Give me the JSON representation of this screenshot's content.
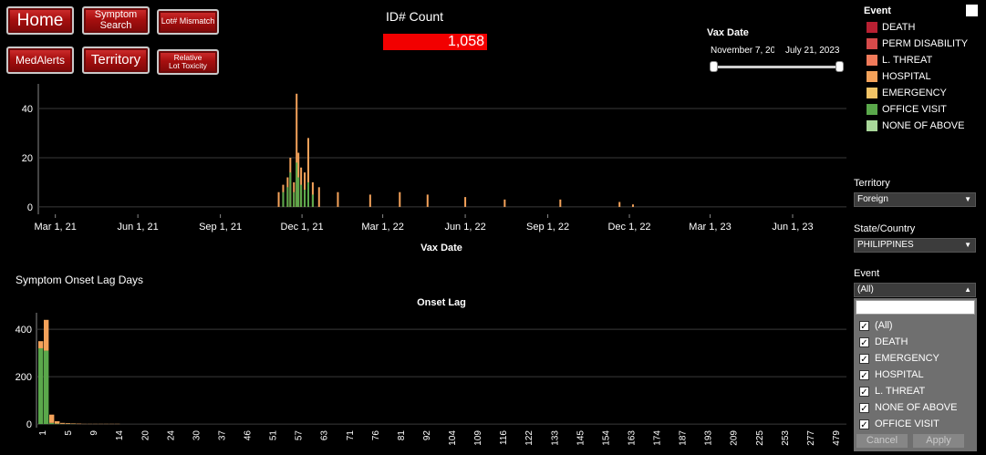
{
  "nav": {
    "home": "Home",
    "symptom_search": "Symptom\nSearch",
    "lot_mismatch": "Lot# Mismatch",
    "medalerts": "MedAlerts",
    "territory": "Territory",
    "relative_lot_toxicity": "Relative\nLot Toxicity"
  },
  "count": {
    "title": "ID# Count",
    "value": "1,058"
  },
  "vax_date_filter": {
    "title": "Vax Date",
    "start": "November 7, 20",
    "end": "July 21, 2023"
  },
  "legend": {
    "title": "Event",
    "items": [
      {
        "label": "DEATH",
        "color": "#b82032"
      },
      {
        "label": "PERM DISABILITY",
        "color": "#d64a4a"
      },
      {
        "label": "L. THREAT",
        "color": "#f07a5a"
      },
      {
        "label": "HOSPITAL",
        "color": "#f4a25a"
      },
      {
        "label": "EMERGENCY",
        "color": "#f2c467"
      },
      {
        "label": "OFFICE VISIT",
        "color": "#5aa84b"
      },
      {
        "label": "NONE OF ABOVE",
        "color": "#a9d79a"
      }
    ]
  },
  "filters": {
    "territory": {
      "label": "Territory",
      "value": "Foreign"
    },
    "state_country": {
      "label": "State/Country",
      "value": "PHILIPPINES"
    },
    "event": {
      "label": "Event",
      "value": "(All)",
      "options": [
        "(All)",
        "DEATH",
        "EMERGENCY",
        "HOSPITAL",
        "L. THREAT",
        "NONE OF ABOVE",
        "OFFICE VISIT"
      ],
      "cancel": "Cancel",
      "apply": "Apply"
    }
  },
  "chart_data": [
    {
      "type": "bar",
      "xlabel": "Vax Date",
      "ylabel": "",
      "ylim": [
        -3,
        50
      ],
      "yticks": [
        0,
        20,
        40
      ],
      "xticks": [
        "Mar 1, 21",
        "Jun 1, 21",
        "Sep 1, 21",
        "Dec 1, 21",
        "Mar 1, 22",
        "Jun 1, 22",
        "Sep 1, 22",
        "Dec 1, 22",
        "Mar 1, 23",
        "Jun 1, 23"
      ],
      "series": [
        {
          "name": "HOSPITAL",
          "color": "#f4a25a",
          "values": [
            {
              "x": "2021-11-05",
              "y": 6
            },
            {
              "x": "2021-11-10",
              "y": 9
            },
            {
              "x": "2021-11-15",
              "y": 12
            },
            {
              "x": "2021-11-18",
              "y": 20
            },
            {
              "x": "2021-11-22",
              "y": 10
            },
            {
              "x": "2021-11-25",
              "y": 46
            },
            {
              "x": "2021-11-27",
              "y": 22
            },
            {
              "x": "2021-11-30",
              "y": 16
            },
            {
              "x": "2021-12-04",
              "y": 14
            },
            {
              "x": "2021-12-08",
              "y": 28
            },
            {
              "x": "2021-12-13",
              "y": 10
            },
            {
              "x": "2021-12-20",
              "y": 8
            },
            {
              "x": "2022-01-10",
              "y": 6
            },
            {
              "x": "2022-02-15",
              "y": 5
            },
            {
              "x": "2022-03-20",
              "y": 6
            },
            {
              "x": "2022-04-20",
              "y": 5
            },
            {
              "x": "2022-06-01",
              "y": 4
            },
            {
              "x": "2022-07-15",
              "y": 3
            },
            {
              "x": "2022-09-15",
              "y": 3
            },
            {
              "x": "2022-11-20",
              "y": 2
            },
            {
              "x": "2022-12-05",
              "y": 1
            }
          ]
        },
        {
          "name": "OFFICE VISIT",
          "color": "#5aa84b",
          "values": [
            {
              "x": "2021-11-10",
              "y": 6
            },
            {
              "x": "2021-11-15",
              "y": 8
            },
            {
              "x": "2021-11-18",
              "y": 14
            },
            {
              "x": "2021-11-22",
              "y": 6
            },
            {
              "x": "2021-11-25",
              "y": 18
            },
            {
              "x": "2021-11-27",
              "y": 12
            },
            {
              "x": "2021-11-30",
              "y": 9
            },
            {
              "x": "2021-12-04",
              "y": 7
            },
            {
              "x": "2021-12-08",
              "y": 10
            },
            {
              "x": "2021-12-13",
              "y": 5
            }
          ]
        }
      ]
    },
    {
      "type": "bar",
      "title": "Onset Lag",
      "xlabel": "",
      "ylabel": "",
      "ylim": [
        -15,
        470
      ],
      "yticks": [
        0,
        200,
        400
      ],
      "categories": [
        "0",
        "1",
        "2",
        "3",
        "4",
        "5",
        "6",
        "7",
        "8",
        "9",
        "10",
        "11",
        "12",
        "13",
        "14"
      ],
      "xtick_labels": [
        "1",
        "5",
        "9",
        "14",
        "20",
        "24",
        "30",
        "37",
        "46",
        "51",
        "57",
        "63",
        "71",
        "76",
        "81",
        "92",
        "104",
        "109",
        "116",
        "122",
        "133",
        "145",
        "154",
        "163",
        "174",
        "187",
        "193",
        "209",
        "225",
        "253",
        "277",
        "479"
      ],
      "series": [
        {
          "name": "OFFICE VISIT",
          "color": "#5aa84b",
          "values": [
            320,
            310,
            5,
            2,
            1,
            1,
            1,
            0,
            0,
            0,
            0,
            0,
            0,
            0,
            0
          ]
        },
        {
          "name": "HOSPITAL",
          "color": "#f4a25a",
          "values": [
            30,
            130,
            35,
            10,
            4,
            3,
            2,
            2,
            1,
            1,
            1,
            1,
            1,
            1,
            1
          ]
        }
      ]
    }
  ],
  "section_titles": {
    "onset_lag_days": "Symptom Onset Lag Days"
  }
}
